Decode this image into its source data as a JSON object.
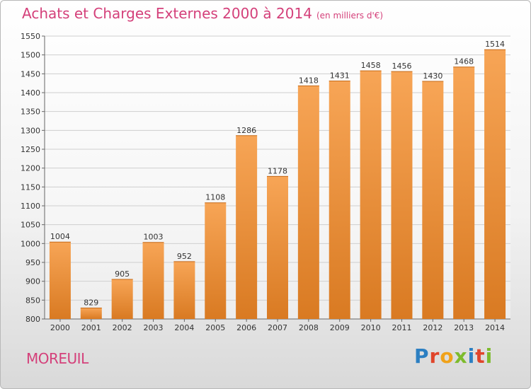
{
  "title": "Achats et Charges Externes 2000 à 2014",
  "unit": "(en milliers d'€)",
  "place": "MOREUIL",
  "brand": {
    "letters": [
      {
        "ch": "P",
        "color": "#2c7fc2"
      },
      {
        "ch": "r",
        "color": "#e0452b"
      },
      {
        "ch": "o",
        "color": "#f0a21a"
      },
      {
        "ch": "x",
        "color": "#7dbb2c"
      },
      {
        "ch": "i",
        "color": "#2c7fc2"
      },
      {
        "ch": "t",
        "color": "#e0452b"
      },
      {
        "ch": "i",
        "color": "#7dbb2c"
      }
    ]
  },
  "colors": {
    "bar_top": "#f7a556",
    "bar_bottom": "#d97a22",
    "title": "#d4407a"
  },
  "chart_data": {
    "type": "bar",
    "categories": [
      "2000",
      "2001",
      "2002",
      "2003",
      "2004",
      "2005",
      "2006",
      "2007",
      "2008",
      "2009",
      "2010",
      "2011",
      "2012",
      "2013",
      "2014"
    ],
    "values": [
      1004,
      829,
      905,
      1003,
      952,
      1108,
      1286,
      1178,
      1418,
      1431,
      1458,
      1456,
      1430,
      1468,
      1514
    ],
    "ylim": [
      800,
      1550
    ],
    "yticks": [
      800,
      850,
      900,
      950,
      1000,
      1050,
      1100,
      1150,
      1200,
      1250,
      1300,
      1350,
      1400,
      1450,
      1500,
      1550
    ],
    "grid": true
  }
}
